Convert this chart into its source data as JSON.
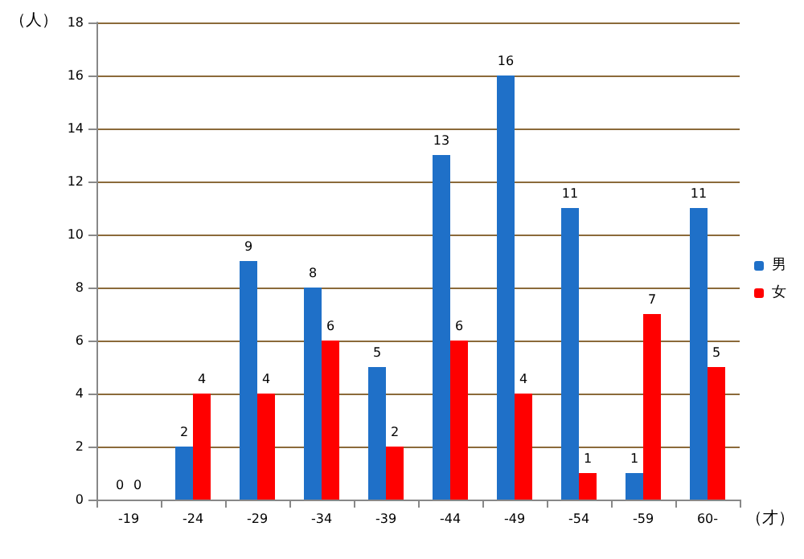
{
  "chart_data": {
    "type": "bar",
    "ylabel": "（人）",
    "xlabel": "（才）",
    "categories": [
      "-19",
      "-24",
      "-29",
      "-34",
      "-39",
      "-44",
      "-49",
      "-54",
      "-59",
      "60-"
    ],
    "series": [
      {
        "name": "男",
        "color": "#1f70c8",
        "values": [
          0,
          2,
          9,
          8,
          5,
          13,
          16,
          11,
          1,
          11
        ]
      },
      {
        "name": "女",
        "color": "#ff0000",
        "values": [
          0,
          4,
          4,
          6,
          2,
          6,
          4,
          1,
          7,
          5
        ]
      }
    ],
    "ylim": [
      0,
      18
    ],
    "yticks": [
      0,
      2,
      4,
      6,
      8,
      10,
      12,
      14,
      16,
      18
    ],
    "grid": "y",
    "legend": "right",
    "data_labels": true
  }
}
